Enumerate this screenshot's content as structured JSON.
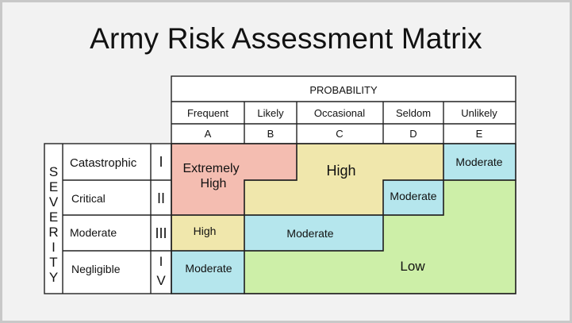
{
  "title": "Army Risk Assessment Matrix",
  "probability": {
    "header": "PROBABILITY",
    "columns": [
      {
        "label": "Frequent",
        "code": "A"
      },
      {
        "label": "Likely",
        "code": "B"
      },
      {
        "label": "Occasional",
        "code": "C"
      },
      {
        "label": "Seldom",
        "code": "D"
      },
      {
        "label": "Unlikely",
        "code": "E"
      }
    ]
  },
  "severity": {
    "header_letters": [
      "S",
      "E",
      "V",
      "E",
      "R",
      "I",
      "T",
      "Y"
    ],
    "rows": [
      {
        "label": "Catastrophic",
        "code": "I"
      },
      {
        "label": "Critical",
        "code": "II"
      },
      {
        "label": "Moderate",
        "code": "III"
      },
      {
        "label": "Negligible",
        "code": "IV"
      }
    ]
  },
  "risk_levels": {
    "extremely_high": "Extremely High",
    "extremely_high_line1": "Extremely",
    "extremely_high_line2": "High",
    "high_top": "High",
    "high_left": "High",
    "moderate_e1": "Moderate",
    "moderate_d2": "Moderate",
    "moderate_row3": "Moderate",
    "moderate_a4": "Moderate",
    "low": "Low"
  },
  "colors": {
    "extremely_high": "#f4bdb1",
    "high": "#f0e7ac",
    "moderate": "#b5e6ed",
    "low": "#cdefa8",
    "border": "#222222",
    "background": "#f2f2f2"
  },
  "matrix": [
    [
      "Extremely High",
      "Extremely High",
      "High",
      "High",
      "Moderate"
    ],
    [
      "Extremely High",
      "High",
      "High",
      "Moderate",
      "Low"
    ],
    [
      "High",
      "Moderate",
      "Moderate",
      "Low",
      "Low"
    ],
    [
      "Moderate",
      "Low",
      "Low",
      "Low",
      "Low"
    ]
  ]
}
